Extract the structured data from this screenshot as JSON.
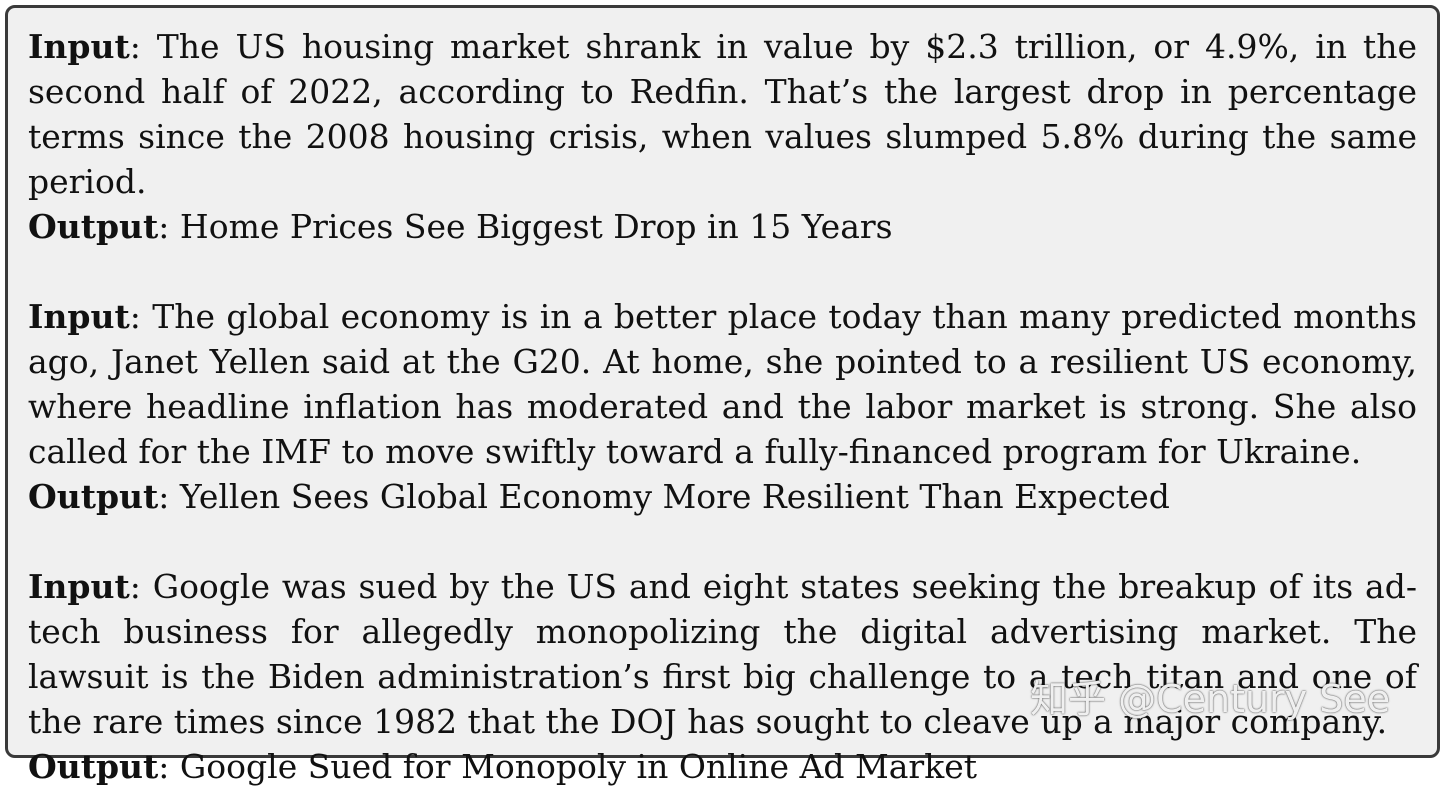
{
  "labels": {
    "input": "Input",
    "output": "Output",
    "sep": ":"
  },
  "examples": [
    {
      "input": "The US housing market shrank in value by $2.3 trillion, or 4.9%, in the second half of 2022, according to Redfin. That’s the largest drop in percentage terms since the 2008 housing crisis, when values slumped 5.8% during the same period.",
      "output": "Home Prices See Biggest Drop in 15 Years"
    },
    {
      "input": "The global economy is in a better place today than many predicted months ago, Janet Yellen said at the G20. At home, she pointed to a resilient US economy, where headline inflation has moderated and the labor market is strong. She also called for the IMF to move swiftly toward a fully-financed program for Ukraine.",
      "output": "Yellen Sees Global Economy More Resilient Than Expected"
    },
    {
      "input": "Google was sued by the US and eight states seeking the breakup of its ad-tech business for allegedly monopolizing the digital advertising market. The lawsuit is the Biden administration’s first big challenge to a tech titan and one of the rare times since 1982 that the DOJ has sought to cleave up a major company.",
      "output": "Google Sued for Monopoly in Online Ad Market"
    }
  ],
  "watermark": "知乎 @Century See"
}
